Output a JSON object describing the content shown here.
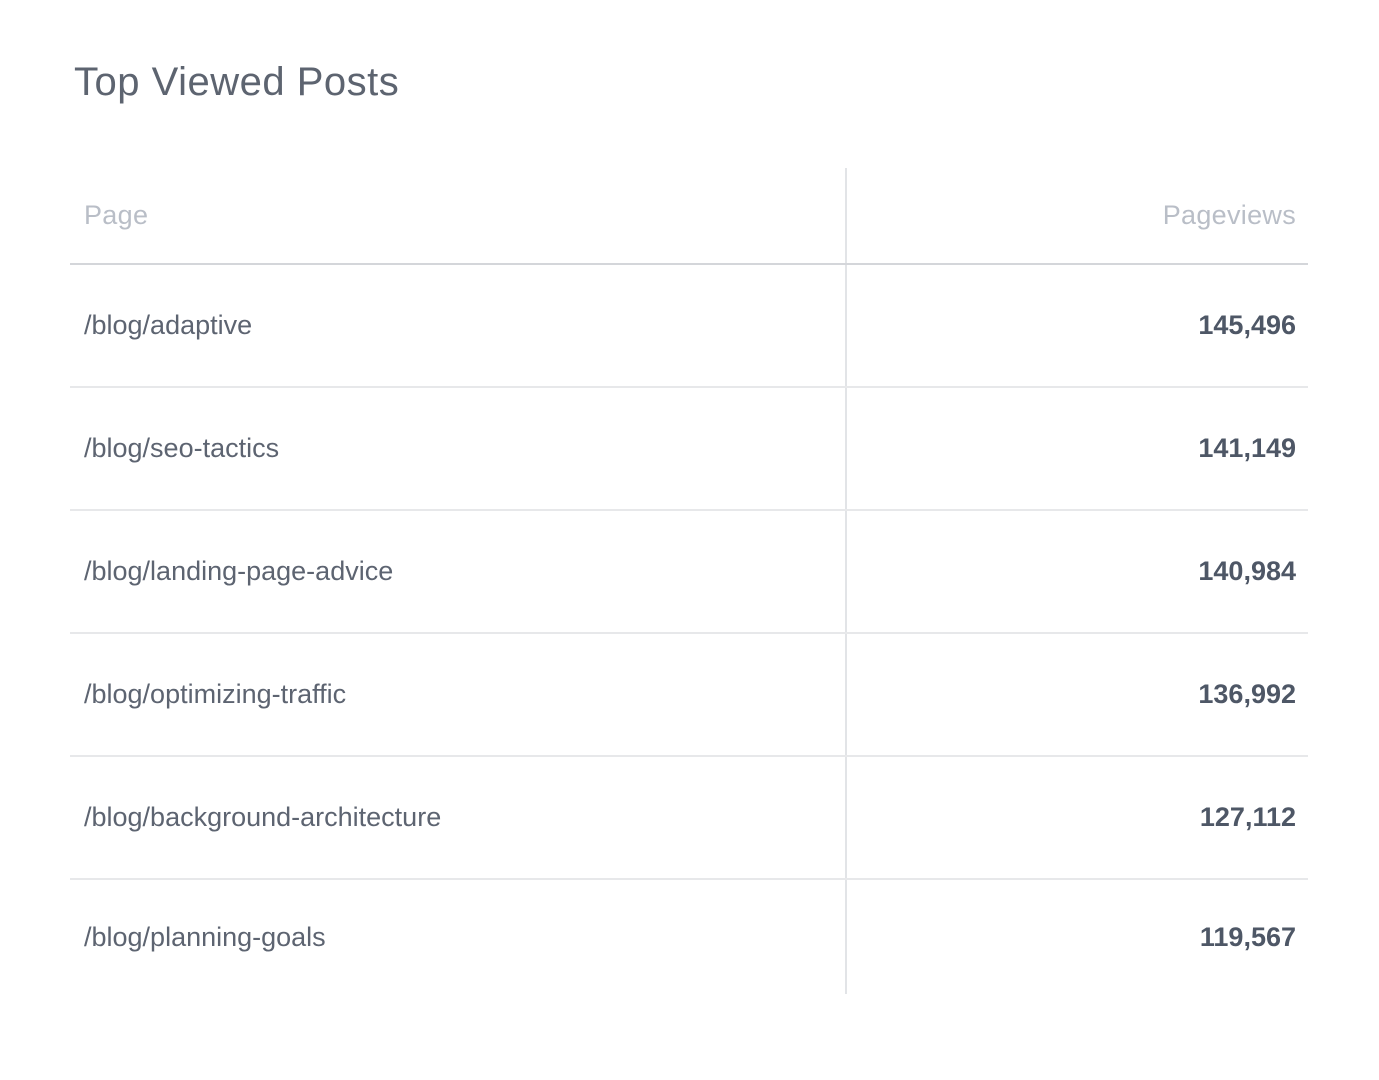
{
  "widget": {
    "title": "Top Viewed Posts",
    "columns": [
      {
        "key": "page",
        "label": "Page",
        "align": "left"
      },
      {
        "key": "pageviews",
        "label": "Pageviews",
        "align": "right"
      }
    ],
    "rows": [
      {
        "page": "/blog/adaptive",
        "pageviews": "145,496"
      },
      {
        "page": "/blog/seo-tactics",
        "pageviews": "141,149"
      },
      {
        "page": "/blog/landing-page-advice",
        "pageviews": "140,984"
      },
      {
        "page": "/blog/optimizing-traffic",
        "pageviews": "136,992"
      },
      {
        "page": "/blog/background-architecture",
        "pageviews": "127,112"
      },
      {
        "page": "/blog/planning-goals",
        "pageviews": "119,567"
      }
    ]
  },
  "colors": {
    "background": "#ffffff",
    "title_text": "#5d6470",
    "header_text": "#b9bec7",
    "page_text": "#5d6471",
    "value_text": "#4e5766",
    "header_border": "#d4d6da",
    "row_border": "#e7e8ea",
    "column_divider": "#e2e4e7"
  },
  "chart_data": {
    "type": "table",
    "title": "Top Viewed Posts",
    "columns": [
      "Page",
      "Pageviews"
    ],
    "rows": [
      [
        "/blog/adaptive",
        145496
      ],
      [
        "/blog/seo-tactics",
        141149
      ],
      [
        "/blog/landing-page-advice",
        140984
      ],
      [
        "/blog/optimizing-traffic",
        136992
      ],
      [
        "/blog/background-architecture",
        127112
      ],
      [
        "/blog/planning-goals",
        119567
      ]
    ],
    "layout": {
      "value_column_align": "right",
      "column_divider": true,
      "row_separators": true,
      "last_row_separator": false
    }
  }
}
